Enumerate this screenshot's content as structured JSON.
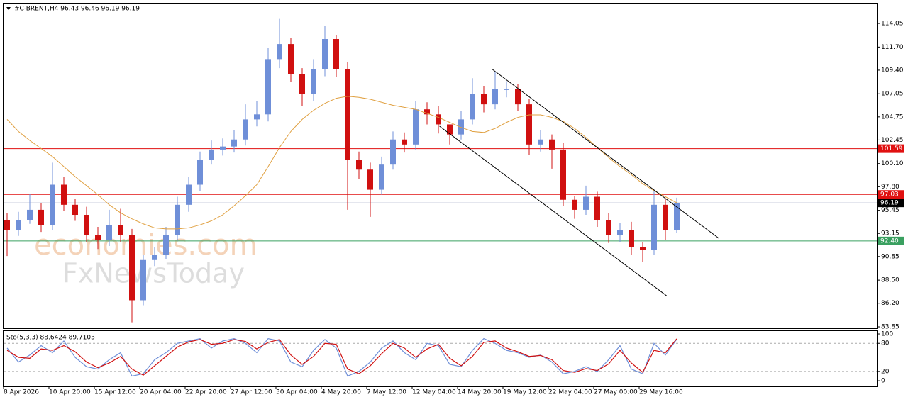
{
  "chart_data": [
    {
      "type": "candlestick",
      "title": "#C-BRENT,H4  96.43 96.46 96.19 96.19",
      "watermark": [
        "economies.com",
        "FxNewsToday"
      ],
      "categories": [
        "8 Apr 2026",
        null,
        null,
        null,
        "10 Apr 20:00",
        null,
        null,
        null,
        "15 Apr 12:00",
        null,
        null,
        null,
        "20 Apr 04:00",
        null,
        null,
        null,
        "22 Apr 20:00",
        null,
        null,
        null,
        "27 Apr 12:00",
        null,
        null,
        null,
        "30 Apr 04:00",
        null,
        null,
        null,
        "4 May 20:00",
        null,
        null,
        null,
        "7 May 12:00",
        null,
        null,
        null,
        "12 May 04:00",
        null,
        null,
        null,
        "14 May 20:00",
        null,
        null,
        null,
        "19 May 12:00",
        null,
        null,
        null,
        "22 May 04:00",
        null,
        null,
        null,
        "27 May 00:00",
        null,
        null,
        null,
        "29 May 16:00",
        null,
        null,
        null
      ],
      "open": [
        94.5,
        93.5,
        94.5,
        95.5,
        94,
        98,
        96,
        95,
        93,
        92.5,
        94,
        93,
        86.5,
        90.5,
        91,
        93,
        96,
        98,
        100.5,
        101.5,
        101.8,
        102.5,
        104.5,
        105,
        110.5,
        112,
        109,
        107,
        109.5,
        112.5,
        109.5,
        100.5,
        99.5,
        97.5,
        100,
        102.5,
        102,
        105.5,
        105,
        104,
        103,
        104.5,
        107,
        106,
        107.5,
        107.5,
        106,
        102,
        102.5,
        101.5,
        96.5,
        95.5,
        96.8,
        94.5,
        93,
        93.5,
        91.8,
        91.5,
        96,
        93.5
      ],
      "high": [
        95.2,
        95.3,
        97.1,
        96.2,
        100.2,
        98.8,
        96.6,
        95.8,
        93.8,
        95.5,
        95.6,
        93.6,
        91.0,
        91.8,
        93.8,
        96.8,
        98.8,
        101.3,
        102.4,
        102.6,
        103.4,
        106.0,
        106.3,
        111.6,
        114.5,
        112.6,
        109.6,
        110.5,
        113.8,
        112.9,
        110.2,
        101.3,
        100.2,
        100.8,
        103.3,
        103.2,
        106.3,
        106.2,
        105.8,
        104.0,
        105.3,
        108.6,
        107.8,
        109.3,
        108.3,
        108.0,
        106.5,
        103.4,
        103.0,
        102.2,
        96.9,
        97.9,
        97.3,
        95.2,
        94.2,
        94.3,
        92.3,
        97.4,
        96.6,
        96.7
      ],
      "low": [
        90.9,
        92.9,
        94.1,
        93.3,
        93.5,
        95.4,
        94.4,
        92.3,
        91.6,
        91.9,
        92.3,
        84.3,
        86.0,
        89.9,
        90.6,
        92.4,
        95.3,
        97.4,
        100.0,
        100.9,
        101.2,
        101.9,
        103.8,
        104.3,
        109.6,
        108.2,
        105.8,
        106.3,
        108.8,
        108.7,
        95.5,
        98.6,
        94.8,
        97.0,
        99.5,
        101.2,
        101.5,
        104.0,
        103.1,
        102.0,
        102.5,
        104.0,
        105.2,
        105.5,
        106.7,
        105.3,
        101.0,
        101.3,
        99.6,
        95.9,
        94.6,
        95.0,
        93.8,
        92.2,
        92.3,
        91.0,
        90.3,
        91.0,
        92.5,
        93.2
      ],
      "close": [
        93.5,
        94.5,
        95.5,
        94,
        98,
        96,
        95,
        93,
        92.5,
        94,
        93,
        86.5,
        90.5,
        91,
        93,
        96,
        98,
        100.5,
        101.5,
        101.8,
        102.5,
        104.5,
        105,
        110.5,
        112,
        109,
        107,
        109.5,
        112.5,
        109.5,
        100.5,
        99.5,
        97.5,
        100,
        102.5,
        102,
        105.5,
        105,
        104,
        103,
        104.5,
        107,
        106,
        107.5,
        107.5,
        106,
        102,
        102.5,
        101.5,
        96.5,
        95.5,
        96.8,
        94.5,
        93,
        93.5,
        91.8,
        91.5,
        96,
        93.5,
        96.19
      ],
      "up_color": "#6f8fd8",
      "down_color": "#d01010",
      "ma": {
        "color": "#e0a040",
        "values": [
          104.5,
          103.3,
          102.4,
          101.6,
          100.8,
          99.8,
          98.8,
          97.9,
          97.0,
          96.0,
          95.2,
          94.6,
          94.1,
          93.7,
          93.6,
          93.6,
          93.7,
          94.0,
          94.4,
          95.0,
          95.9,
          96.9,
          98.0,
          99.8,
          101.7,
          103.3,
          104.5,
          105.4,
          106.1,
          106.6,
          106.8,
          106.7,
          106.5,
          106.2,
          105.9,
          105.7,
          105.5,
          105.1,
          104.7,
          104.2,
          103.7,
          103.3,
          103.2,
          103.6,
          104.2,
          104.7,
          104.95,
          104.95,
          104.7,
          104.3,
          103.6,
          102.7,
          101.7,
          100.7,
          99.8,
          99.0,
          98.1,
          97.4,
          96.8,
          96.2
        ]
      },
      "levels": [
        101.59,
        97.03,
        96.19,
        {
          "value": 92.4,
          "label": "92.40"
        }
      ],
      "level_colors": [
        "#e01010",
        "#e01010",
        "#b8bcd0",
        "#3aa060"
      ],
      "trendlines": [
        {
          "x": [
            42.7,
            62.7
          ],
          "y": [
            109.53,
            92.67
          ]
        },
        {
          "x": [
            38.1,
            58.1
          ],
          "y": [
            103.82,
            86.95
          ]
        }
      ],
      "trendline_color": "#000000",
      "ylim": [
        83.71,
        116.1
      ],
      "yticks": [
        114.05,
        {
          "value": 111.7,
          "label": "111.70"
        },
        {
          "value": 109.4,
          "label": "109.40"
        },
        107.05,
        104.75,
        102.45,
        {
          "value": 100.1,
          "label": "100.10"
        },
        {
          "value": 97.8,
          "label": "97.80"
        },
        95.45,
        93.15,
        90.85,
        {
          "value": 88.5,
          "label": "88.50"
        },
        {
          "value": 86.2,
          "label": "86.20"
        },
        83.85
      ]
    },
    {
      "type": "line",
      "title": "Sto(5,3,3) 88.6424 89.7103",
      "series": [
        {
          "name": "Main",
          "color": "#6f8fd8",
          "values": [
            70,
            40,
            55,
            75,
            60,
            85,
            50,
            30,
            25,
            45,
            60,
            10,
            15,
            45,
            60,
            80,
            85,
            90,
            70,
            85,
            90,
            80,
            60,
            90,
            85,
            40,
            30,
            65,
            88,
            70,
            10,
            20,
            40,
            70,
            85,
            60,
            45,
            80,
            75,
            35,
            30,
            65,
            90,
            80,
            65,
            60,
            50,
            55,
            40,
            15,
            20,
            30,
            20,
            45,
            75,
            25,
            15,
            80,
            55,
            88.6424
          ]
        },
        {
          "name": "Signal",
          "color": "#d01010",
          "values": [
            65,
            50,
            48,
            68,
            65,
            75,
            62,
            40,
            28,
            38,
            52,
            25,
            12,
            32,
            52,
            72,
            83,
            88,
            78,
            80,
            88,
            84,
            68,
            82,
            88,
            55,
            35,
            52,
            80,
            78,
            25,
            15,
            32,
            58,
            80,
            70,
            50,
            68,
            78,
            48,
            32,
            52,
            82,
            85,
            70,
            62,
            52,
            54,
            45,
            22,
            18,
            26,
            22,
            36,
            65,
            38,
            18,
            65,
            60,
            89.7103
          ]
        }
      ],
      "levels": [
        80,
        20
      ],
      "ylim": [
        -12,
        107.6
      ],
      "yticks": [
        100,
        80,
        20,
        0
      ]
    }
  ]
}
